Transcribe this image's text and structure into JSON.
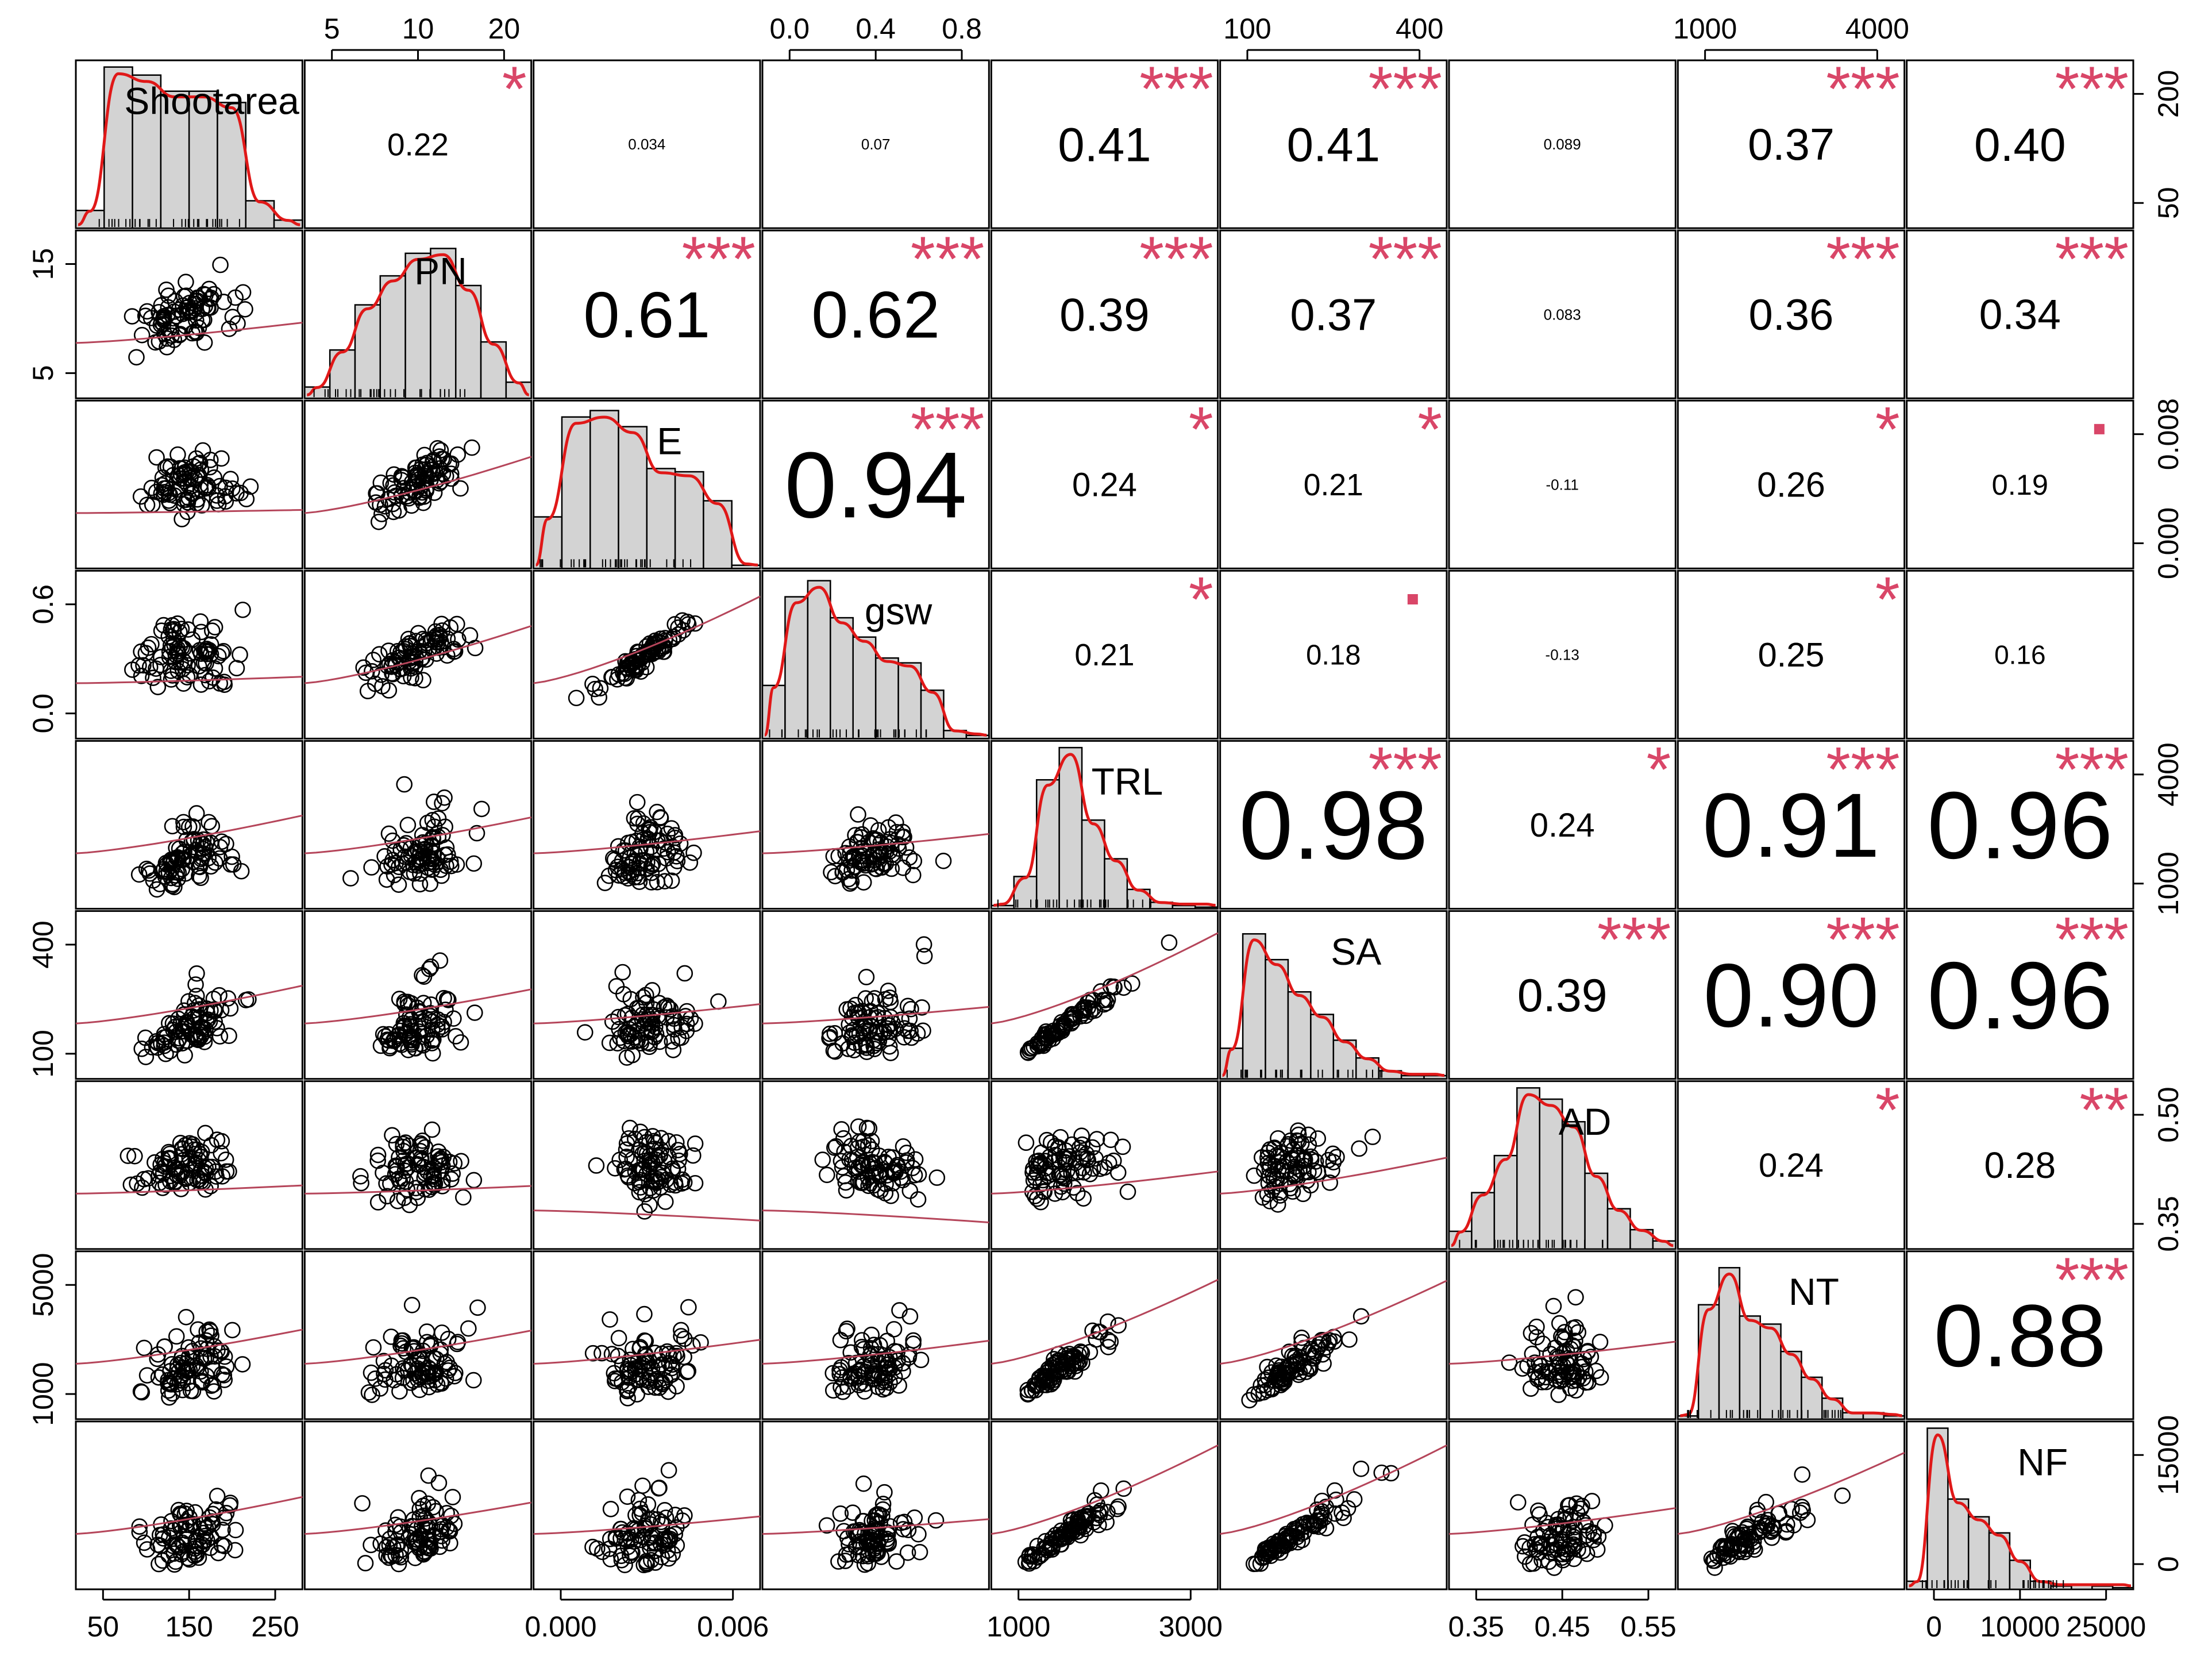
{
  "chart_data": {
    "type": "scatter",
    "variables": [
      "Shootarea",
      "PN",
      "E",
      "gsw",
      "TRL",
      "SA",
      "AD",
      "NT",
      "NF"
    ],
    "histogram_heights": [
      [
        0.11,
        1.0,
        0.95,
        0.85,
        0.85,
        0.78,
        0.17,
        0.05
      ],
      [
        0.07,
        0.3,
        0.58,
        0.76,
        0.9,
        0.93,
        0.7,
        0.35,
        0.1
      ],
      [
        0.32,
        0.94,
        0.98,
        0.88,
        0.62,
        0.6,
        0.42,
        0.02
      ],
      [
        0.33,
        0.88,
        0.98,
        0.75,
        0.63,
        0.5,
        0.47,
        0.3,
        0.05,
        0.02
      ],
      [
        0.02,
        0.2,
        0.8,
        1.0,
        0.55,
        0.31,
        0.12,
        0.04,
        0.02,
        0.01
      ],
      [
        0.19,
        0.9,
        0.74,
        0.54,
        0.4,
        0.24,
        0.13,
        0.05,
        0.02,
        0.02
      ],
      [
        0.11,
        0.35,
        0.58,
        1.0,
        0.93,
        0.79,
        0.47,
        0.25,
        0.12,
        0.05
      ],
      [
        0.02,
        0.71,
        0.94,
        0.64,
        0.59,
        0.42,
        0.26,
        0.13,
        0.04,
        0.04,
        0.02
      ],
      [
        0.05,
        1.0,
        0.56,
        0.45,
        0.35,
        0.18,
        0.05,
        0.02,
        0.03,
        0.02,
        0.01
      ]
    ],
    "correlations": [
      {
        "i": 0,
        "j": 1,
        "r": "0.22",
        "stars": "*"
      },
      {
        "i": 0,
        "j": 2,
        "r": "0.034",
        "stars": ""
      },
      {
        "i": 0,
        "j": 3,
        "r": "0.07",
        "stars": ""
      },
      {
        "i": 0,
        "j": 4,
        "r": "0.41",
        "stars": "***"
      },
      {
        "i": 0,
        "j": 5,
        "r": "0.41",
        "stars": "***"
      },
      {
        "i": 0,
        "j": 6,
        "r": "0.089",
        "stars": ""
      },
      {
        "i": 0,
        "j": 7,
        "r": "0.37",
        "stars": "***"
      },
      {
        "i": 0,
        "j": 8,
        "r": "0.40",
        "stars": "***"
      },
      {
        "i": 1,
        "j": 2,
        "r": "0.61",
        "stars": "***"
      },
      {
        "i": 1,
        "j": 3,
        "r": "0.62",
        "stars": "***"
      },
      {
        "i": 1,
        "j": 4,
        "r": "0.39",
        "stars": "***"
      },
      {
        "i": 1,
        "j": 5,
        "r": "0.37",
        "stars": "***"
      },
      {
        "i": 1,
        "j": 6,
        "r": "0.083",
        "stars": ""
      },
      {
        "i": 1,
        "j": 7,
        "r": "0.36",
        "stars": "***"
      },
      {
        "i": 1,
        "j": 8,
        "r": "0.34",
        "stars": "***"
      },
      {
        "i": 2,
        "j": 3,
        "r": "0.94",
        "stars": "***"
      },
      {
        "i": 2,
        "j": 4,
        "r": "0.24",
        "stars": "*"
      },
      {
        "i": 2,
        "j": 5,
        "r": "0.21",
        "stars": "*"
      },
      {
        "i": 2,
        "j": 6,
        "r": "-0.11",
        "stars": ""
      },
      {
        "i": 2,
        "j": 7,
        "r": "0.26",
        "stars": "*"
      },
      {
        "i": 2,
        "j": 8,
        "r": "0.19",
        "stars": "."
      },
      {
        "i": 3,
        "j": 4,
        "r": "0.21",
        "stars": "*"
      },
      {
        "i": 3,
        "j": 5,
        "r": "0.18",
        "stars": "."
      },
      {
        "i": 3,
        "j": 6,
        "r": "-0.13",
        "stars": ""
      },
      {
        "i": 3,
        "j": 7,
        "r": "0.25",
        "stars": "*"
      },
      {
        "i": 3,
        "j": 8,
        "r": "0.16",
        "stars": ""
      },
      {
        "i": 4,
        "j": 5,
        "r": "0.98",
        "stars": "***"
      },
      {
        "i": 4,
        "j": 6,
        "r": "0.24",
        "stars": "*"
      },
      {
        "i": 4,
        "j": 7,
        "r": "0.91",
        "stars": "***"
      },
      {
        "i": 4,
        "j": 8,
        "r": "0.96",
        "stars": "***"
      },
      {
        "i": 5,
        "j": 6,
        "r": "0.39",
        "stars": "***"
      },
      {
        "i": 5,
        "j": 7,
        "r": "0.90",
        "stars": "***"
      },
      {
        "i": 5,
        "j": 8,
        "r": "0.96",
        "stars": "***"
      },
      {
        "i": 6,
        "j": 7,
        "r": "0.24",
        "stars": "*"
      },
      {
        "i": 6,
        "j": 8,
        "r": "0.28",
        "stars": "**"
      },
      {
        "i": 7,
        "j": 8,
        "r": "0.88",
        "stars": "***"
      }
    ],
    "axis_ticks": {
      "top": [
        {
          "col": 1,
          "labels": [
            "5",
            "10",
            "20"
          ]
        },
        {
          "col": 3,
          "labels": [
            "0.0",
            "0.4",
            "0.8"
          ]
        },
        {
          "col": 5,
          "labels": [
            "100",
            "400"
          ]
        },
        {
          "col": 7,
          "labels": [
            "1000",
            "4000"
          ]
        }
      ],
      "bottom": [
        {
          "col": 0,
          "labels": [
            "50",
            "150",
            "250"
          ]
        },
        {
          "col": 2,
          "labels": [
            "0.000",
            "0.006"
          ]
        },
        {
          "col": 4,
          "labels": [
            "1000",
            "3000"
          ]
        },
        {
          "col": 6,
          "labels": [
            "0.35",
            "0.45",
            "0.55"
          ]
        },
        {
          "col": 8,
          "labels": [
            "0",
            "10000",
            "25000"
          ]
        }
      ],
      "left": [
        {
          "row": 1,
          "labels": [
            "15",
            "5"
          ]
        },
        {
          "row": 3,
          "labels": [
            "0.6",
            "0.0"
          ]
        },
        {
          "row": 5,
          "labels": [
            "400",
            "100"
          ]
        },
        {
          "row": 7,
          "labels": [
            "5000",
            "1000"
          ]
        }
      ],
      "right": [
        {
          "row": 0,
          "labels": [
            "200",
            "50"
          ]
        },
        {
          "row": 2,
          "labels": [
            "0.008",
            "0.000"
          ]
        },
        {
          "row": 4,
          "labels": [
            "4000",
            "1000"
          ]
        },
        {
          "row": 6,
          "labels": [
            "0.50",
            "0.35"
          ]
        },
        {
          "row": 8,
          "labels": [
            "15000",
            "0"
          ]
        }
      ]
    },
    "colors": {
      "fit_line": "#b5455a",
      "density": "#e01818",
      "stars": "#d94668",
      "bars": "#d3d3d3"
    }
  }
}
